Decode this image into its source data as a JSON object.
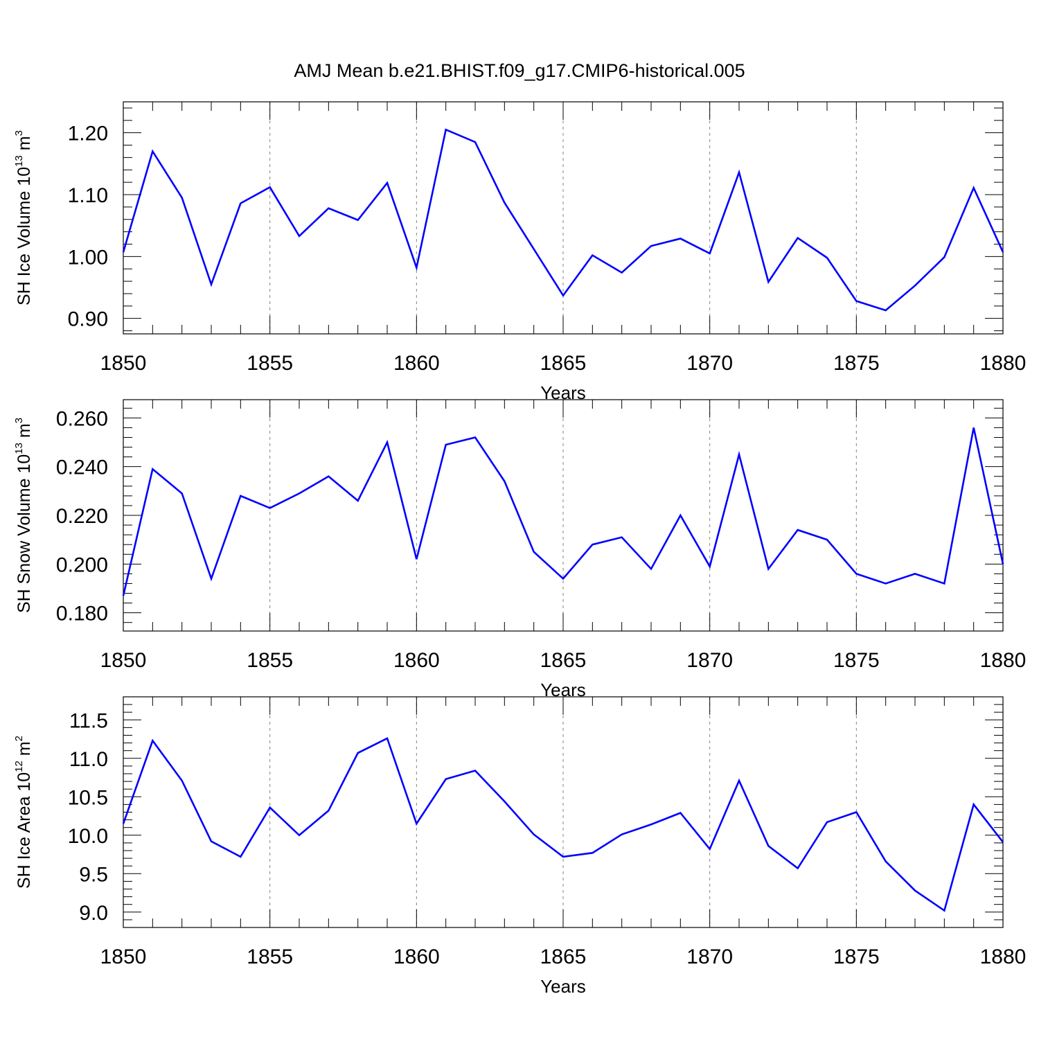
{
  "title": "AMJ Mean b.e21.BHIST.f09_g17.CMIP6-historical.005",
  "colors": {
    "line": "#0000ff",
    "axis": "#000000",
    "grid": "#808080"
  },
  "chart_data": [
    {
      "type": "line",
      "ylabel_main": "SH Ice Volume 10",
      "ylabel_exp": "13",
      "ylabel_unit": " m",
      "ylabel_unit_exp": "3",
      "xlabel": "Years",
      "xlim": [
        1850,
        1880
      ],
      "ylim": [
        0.875,
        1.25
      ],
      "ytick_values": [
        0.9,
        1.0,
        1.1,
        1.2
      ],
      "ytick_labels": [
        "0.90",
        "1.00",
        "1.10",
        "1.20"
      ],
      "xtick_values": [
        1850,
        1855,
        1860,
        1865,
        1870,
        1875,
        1880
      ],
      "xtick_labels": [
        "1850",
        "1855",
        "1860",
        "1865",
        "1870",
        "1875",
        "1880"
      ],
      "x": [
        1850,
        1851,
        1852,
        1853,
        1854,
        1855,
        1856,
        1857,
        1858,
        1859,
        1860,
        1861,
        1862,
        1863,
        1864,
        1865,
        1866,
        1867,
        1868,
        1869,
        1870,
        1871,
        1872,
        1873,
        1874,
        1875,
        1876,
        1877,
        1878,
        1879,
        1880
      ],
      "y": [
        1.007,
        1.17,
        1.095,
        0.955,
        1.086,
        1.112,
        1.033,
        1.078,
        1.059,
        1.119,
        0.982,
        1.205,
        1.185,
        1.087,
        1.012,
        0.937,
        1.002,
        0.974,
        1.017,
        1.029,
        1.005,
        1.136,
        0.959,
        1.03,
        0.998,
        0.928,
        0.913,
        0.953,
        0.999,
        1.111,
        1.007
      ]
    },
    {
      "type": "line",
      "ylabel_main": "SH Snow Volume 10",
      "ylabel_exp": "13",
      "ylabel_unit": " m",
      "ylabel_unit_exp": "3",
      "xlabel": "Years",
      "xlim": [
        1850,
        1880
      ],
      "ylim": [
        0.1725,
        0.2675
      ],
      "ytick_values": [
        0.18,
        0.2,
        0.22,
        0.24,
        0.26
      ],
      "ytick_labels": [
        "0.180",
        "0.200",
        "0.220",
        "0.240",
        "0.260"
      ],
      "xtick_values": [
        1850,
        1855,
        1860,
        1865,
        1870,
        1875,
        1880
      ],
      "xtick_labels": [
        "1850",
        "1855",
        "1860",
        "1865",
        "1870",
        "1875",
        "1880"
      ],
      "x": [
        1850,
        1851,
        1852,
        1853,
        1854,
        1855,
        1856,
        1857,
        1858,
        1859,
        1860,
        1861,
        1862,
        1863,
        1864,
        1865,
        1866,
        1867,
        1868,
        1869,
        1870,
        1871,
        1872,
        1873,
        1874,
        1875,
        1876,
        1877,
        1878,
        1879,
        1880
      ],
      "y": [
        0.187,
        0.239,
        0.229,
        0.194,
        0.228,
        0.223,
        0.229,
        0.236,
        0.226,
        0.25,
        0.202,
        0.249,
        0.252,
        0.234,
        0.205,
        0.194,
        0.208,
        0.211,
        0.198,
        0.22,
        0.199,
        0.245,
        0.198,
        0.214,
        0.21,
        0.196,
        0.192,
        0.196,
        0.192,
        0.256,
        0.2
      ]
    },
    {
      "type": "line",
      "ylabel_main": "SH Ice Area 10",
      "ylabel_exp": "12",
      "ylabel_unit": " m",
      "ylabel_unit_exp": "2",
      "xlabel": "Years",
      "xlim": [
        1850,
        1880
      ],
      "ylim": [
        8.8,
        11.8
      ],
      "ytick_values": [
        9.0,
        9.5,
        10.0,
        10.5,
        11.0,
        11.5
      ],
      "ytick_labels": [
        "9.0",
        "9.5",
        "10.0",
        "10.5",
        "11.0",
        "11.5"
      ],
      "xtick_values": [
        1850,
        1855,
        1860,
        1865,
        1870,
        1875,
        1880
      ],
      "xtick_labels": [
        "1850",
        "1855",
        "1860",
        "1865",
        "1870",
        "1875",
        "1880"
      ],
      "x": [
        1850,
        1851,
        1852,
        1853,
        1854,
        1855,
        1856,
        1857,
        1858,
        1859,
        1860,
        1861,
        1862,
        1863,
        1864,
        1865,
        1866,
        1867,
        1868,
        1869,
        1870,
        1871,
        1872,
        1873,
        1874,
        1875,
        1876,
        1877,
        1878,
        1879,
        1880
      ],
      "y": [
        10.15,
        11.23,
        10.71,
        9.92,
        9.72,
        10.36,
        10.0,
        10.32,
        11.07,
        11.26,
        10.15,
        10.73,
        10.84,
        10.44,
        10.01,
        9.72,
        9.77,
        10.01,
        10.14,
        10.29,
        9.82,
        10.71,
        9.86,
        9.57,
        10.17,
        10.3,
        9.66,
        9.28,
        9.02,
        10.4,
        9.91
      ]
    }
  ]
}
